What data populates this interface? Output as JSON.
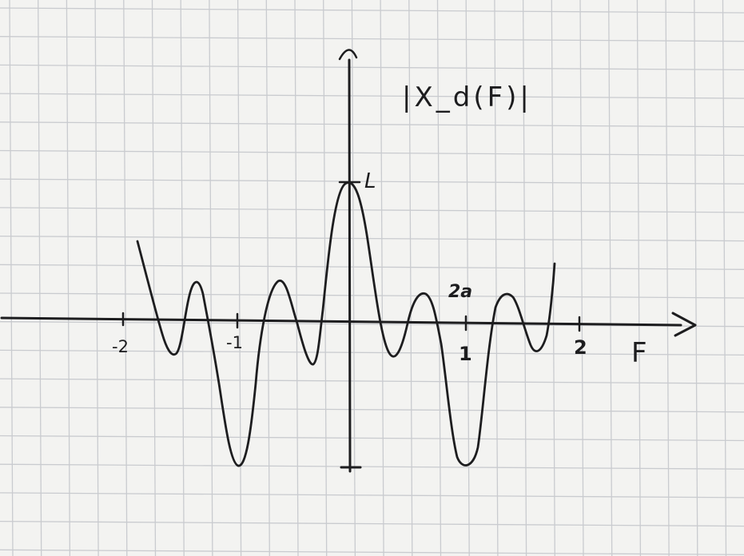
{
  "plot": {
    "title": "|X_d(F)|",
    "axis_label_x": "F",
    "peak_label": "L",
    "peak_text": "2a",
    "ticks": [
      {
        "value": -2,
        "label": "-2"
      },
      {
        "value": -1,
        "label": "-1"
      },
      {
        "value": 1,
        "label": "1"
      },
      {
        "value": 2,
        "label": "2"
      }
    ],
    "ink_color": "#1d1d1f",
    "paper_color": "#f3f3f1",
    "grid_color": "#c9cbcf"
  }
}
